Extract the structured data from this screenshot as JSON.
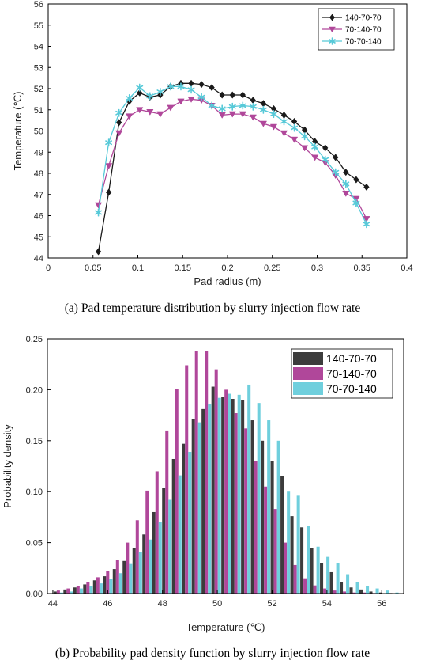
{
  "chart_data": [
    {
      "type": "line",
      "xlabel": "Pad radius (m)",
      "ylabel": "Temperature (℃)",
      "xlim": [
        0,
        0.4
      ],
      "ylim": [
        44,
        56
      ],
      "xticks": [
        0,
        0.05,
        0.1,
        0.15,
        0.2,
        0.25,
        0.3,
        0.35,
        0.4
      ],
      "xtick_labels": [
        "0",
        "0.05",
        "0.1",
        "0.15",
        "0.2",
        "0.25",
        "0.3",
        "0.35",
        "0.4"
      ],
      "yticks": [
        44,
        45,
        46,
        47,
        48,
        49,
        50,
        51,
        52,
        53,
        54,
        55,
        56
      ],
      "yticks_labels": [
        "44",
        "45",
        "46",
        "47",
        "48",
        "49",
        "50",
        "51",
        "52",
        "53",
        "54",
        "55",
        "56"
      ],
      "legend_position": "top-right",
      "x": [
        0.056,
        0.0675,
        0.079,
        0.0905,
        0.102,
        0.1135,
        0.125,
        0.1365,
        0.148,
        0.1595,
        0.171,
        0.1825,
        0.194,
        0.2055,
        0.217,
        0.2285,
        0.24,
        0.2515,
        0.263,
        0.2745,
        0.286,
        0.2975,
        0.309,
        0.3205,
        0.332,
        0.3435,
        0.355
      ],
      "series": [
        {
          "name": "140-70-70",
          "color": "#1a1a1a",
          "marker": "diamond",
          "values": [
            44.3,
            47.1,
            50.4,
            51.4,
            51.8,
            51.6,
            51.7,
            52.1,
            52.25,
            52.25,
            52.2,
            52.05,
            51.7,
            51.7,
            51.7,
            51.45,
            51.3,
            51.05,
            50.75,
            50.45,
            50.05,
            49.5,
            49.2,
            48.75,
            48.05,
            47.7,
            47.35
          ]
        },
        {
          "name": "70-140-70",
          "color": "#b0479a",
          "marker": "triangle-down",
          "values": [
            46.5,
            48.35,
            49.9,
            50.7,
            51.0,
            50.9,
            50.8,
            51.1,
            51.4,
            51.5,
            51.45,
            51.2,
            50.75,
            50.8,
            50.8,
            50.65,
            50.35,
            50.2,
            49.9,
            49.6,
            49.2,
            48.75,
            48.5,
            47.9,
            47.05,
            46.8,
            45.85
          ]
        },
        {
          "name": "70-70-140",
          "color": "#57c9d8",
          "marker": "asterisk",
          "values": [
            46.15,
            49.45,
            50.85,
            51.55,
            52.05,
            51.65,
            51.85,
            52.1,
            52.1,
            51.95,
            51.6,
            51.2,
            51.05,
            51.15,
            51.2,
            51.15,
            51.0,
            50.8,
            50.45,
            50.15,
            49.75,
            49.25,
            48.65,
            48.05,
            47.5,
            46.6,
            45.6
          ]
        }
      ]
    },
    {
      "type": "bar",
      "xlabel": "Temperature (℃)",
      "ylabel": "Probability density",
      "xlim": [
        43.8,
        56.8
      ],
      "ylim": [
        0,
        0.25
      ],
      "bin_width": 0.36,
      "xticks": [
        44,
        46,
        48,
        50,
        52,
        54,
        56
      ],
      "xtick_labels": [
        "44",
        "46",
        "48",
        "50",
        "52",
        "54",
        "56"
      ],
      "yticks": [
        0,
        0.05,
        0.1,
        0.15,
        0.2,
        0.25
      ],
      "ytick_labels": [
        "0.00",
        "0.05",
        "0.10",
        "0.15",
        "0.20",
        "0.25"
      ],
      "legend_position": "top-right",
      "x": [
        44.2,
        44.56,
        44.92,
        45.28,
        45.64,
        46.0,
        46.36,
        46.72,
        47.08,
        47.44,
        47.8,
        48.16,
        48.52,
        48.88,
        49.24,
        49.6,
        49.96,
        50.32,
        50.68,
        51.04,
        51.4,
        51.76,
        52.12,
        52.48,
        52.84,
        53.2,
        53.56,
        53.92,
        54.28,
        54.64,
        55.0,
        55.36,
        55.72,
        56.08,
        56.44
      ],
      "series": [
        {
          "name": "140-70-70",
          "color": "#3c3c3c",
          "values": [
            0.002,
            0.004,
            0.006,
            0.009,
            0.013,
            0.017,
            0.024,
            0.032,
            0.045,
            0.058,
            0.08,
            0.104,
            0.132,
            0.147,
            0.171,
            0.181,
            0.203,
            0.193,
            0.191,
            0.19,
            0.17,
            0.15,
            0.13,
            0.115,
            0.076,
            0.065,
            0.045,
            0.03,
            0.021,
            0.011,
            0.006,
            0.004,
            0.002,
            0.001,
            0.0005
          ]
        },
        {
          "name": "70-140-70",
          "color": "#b0479a",
          "values": [
            0.003,
            0.005,
            0.007,
            0.011,
            0.016,
            0.022,
            0.033,
            0.05,
            0.072,
            0.101,
            0.12,
            0.16,
            0.201,
            0.224,
            0.238,
            0.238,
            0.22,
            0.2,
            0.177,
            0.162,
            0.13,
            0.105,
            0.083,
            0.05,
            0.028,
            0.015,
            0.008,
            0.005,
            0.003,
            0.002,
            0.001,
            0.001,
            0.0005,
            0.0003,
            0.0002
          ]
        },
        {
          "name": "70-70-140",
          "color": "#6fcfdd",
          "values": [
            0.001,
            0.002,
            0.005,
            0.007,
            0.01,
            0.014,
            0.02,
            0.029,
            0.041,
            0.053,
            0.07,
            0.092,
            0.116,
            0.139,
            0.168,
            0.186,
            0.192,
            0.196,
            0.195,
            0.205,
            0.187,
            0.17,
            0.15,
            0.1,
            0.096,
            0.066,
            0.046,
            0.036,
            0.03,
            0.019,
            0.011,
            0.007,
            0.005,
            0.003,
            0.001
          ]
        }
      ]
    }
  ],
  "captions": {
    "a": "(a) Pad temperature distribution by slurry injection flow rate",
    "b": "(b) Probability pad density function by slurry injection flow rate"
  }
}
